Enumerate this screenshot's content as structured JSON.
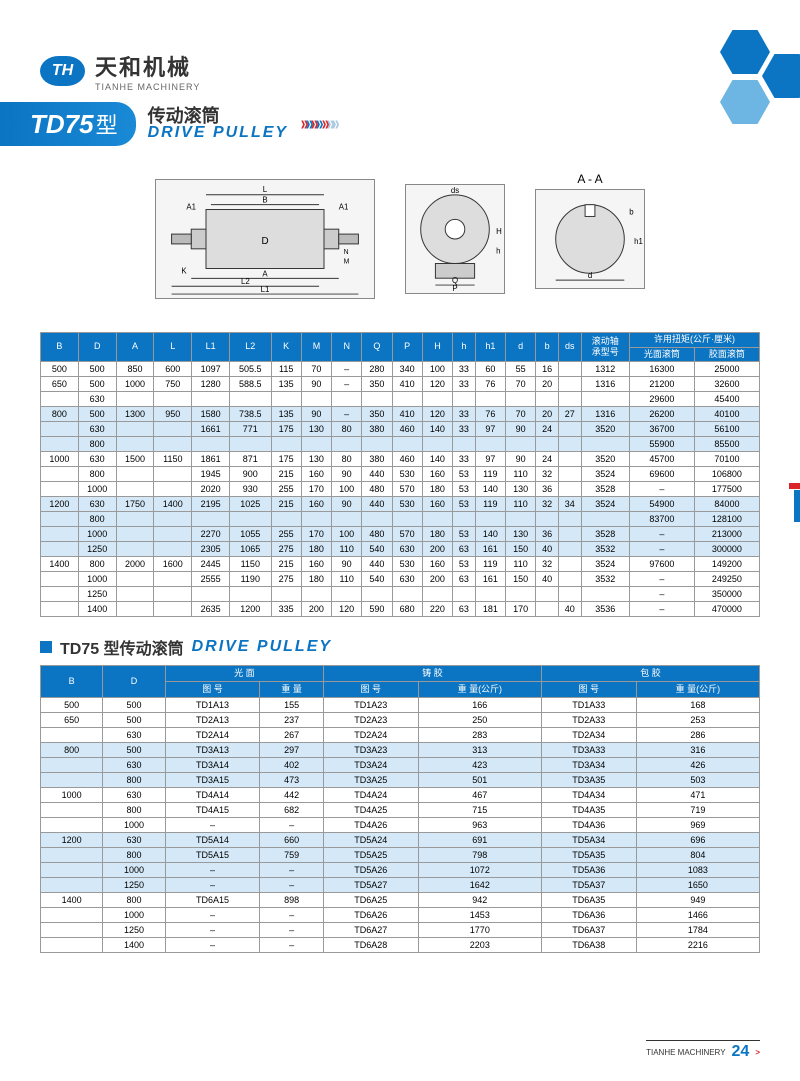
{
  "logo": {
    "badge": "TH",
    "cn": "天和机械",
    "en": "TIANHE MACHINERY"
  },
  "title": {
    "code": "TD75",
    "xing": "型",
    "cn": "传动滚筒",
    "en": "DRIVE PULLEY"
  },
  "diagram_aa_label": "A - A",
  "section2": {
    "cn": "TD75 型传动滚筒",
    "en": "DRIVE PULLEY"
  },
  "chevron_colors": [
    "#d9252a",
    "#0b74c3",
    "#d9252a",
    "#0b74c3",
    "#d9252a",
    "#a8c8e0",
    "#a8c8e0"
  ],
  "table1_headers": [
    "B",
    "D",
    "A",
    "L",
    "L1",
    "L2",
    "K",
    "M",
    "N",
    "Q",
    "P",
    "H",
    "h",
    "h1",
    "d",
    "b",
    "ds",
    "滚动轴\n承型号",
    "许用扭矩(公斤·厘米)"
  ],
  "table1_subheaders": [
    "光面滚筒",
    "胶面滚筒"
  ],
  "table1_rows": [
    {
      "B": "500",
      "D": "500",
      "A": "850",
      "L": "600",
      "L1": "1097",
      "L2": "505.5",
      "K": "115",
      "M": "70",
      "N": "–",
      "Q": "280",
      "P": "340",
      "H": "100",
      "h": "33",
      "h1": "60",
      "d": "55",
      "b": "16",
      "ds": "",
      "bearing": "1312",
      "t1": "16300",
      "t2": "25000"
    },
    {
      "B": "650",
      "D": "500",
      "A": "1000",
      "L": "750",
      "L1": "1280",
      "L2": "588.5",
      "K": "135",
      "M": "90",
      "N": "–",
      "Q": "350",
      "P": "410",
      "H": "120",
      "h": "33",
      "h1": "76",
      "d": "70",
      "b": "20",
      "ds": "",
      "bearing": "1316",
      "t1": "21200",
      "t2": "32600"
    },
    {
      "B": "",
      "D": "630",
      "A": "",
      "L": "",
      "L1": "",
      "L2": "",
      "K": "",
      "M": "",
      "N": "",
      "Q": "",
      "P": "",
      "H": "",
      "h": "",
      "h1": "",
      "d": "",
      "b": "",
      "ds": "",
      "bearing": "",
      "t1": "29600",
      "t2": "45400"
    },
    {
      "B": "800",
      "D": "500",
      "A": "1300",
      "L": "950",
      "L1": "1580",
      "L2": "738.5",
      "K": "135",
      "M": "90",
      "N": "–",
      "Q": "350",
      "P": "410",
      "H": "120",
      "h": "33",
      "h1": "76",
      "d": "70",
      "b": "20",
      "ds": "27",
      "bearing": "1316",
      "t1": "26200",
      "t2": "40100",
      "zebra": true
    },
    {
      "B": "",
      "D": "630",
      "A": "",
      "L": "",
      "L1": "1661",
      "L2": "771",
      "K": "175",
      "M": "130",
      "N": "80",
      "Q": "380",
      "P": "460",
      "H": "140",
      "h": "33",
      "h1": "97",
      "d": "90",
      "b": "24",
      "ds": "",
      "bearing": "3520",
      "t1": "36700",
      "t2": "56100",
      "zebra": true
    },
    {
      "B": "",
      "D": "800",
      "A": "",
      "L": "",
      "L1": "",
      "L2": "",
      "K": "",
      "M": "",
      "N": "",
      "Q": "",
      "P": "",
      "H": "",
      "h": "",
      "h1": "",
      "d": "",
      "b": "",
      "ds": "",
      "bearing": "",
      "t1": "55900",
      "t2": "85500",
      "zebra": true
    },
    {
      "B": "1000",
      "D": "630",
      "A": "1500",
      "L": "1150",
      "L1": "1861",
      "L2": "871",
      "K": "175",
      "M": "130",
      "N": "80",
      "Q": "380",
      "P": "460",
      "H": "140",
      "h": "33",
      "h1": "97",
      "d": "90",
      "b": "24",
      "ds": "",
      "bearing": "3520",
      "t1": "45700",
      "t2": "70100"
    },
    {
      "B": "",
      "D": "800",
      "A": "",
      "L": "",
      "L1": "1945",
      "L2": "900",
      "K": "215",
      "M": "160",
      "N": "90",
      "Q": "440",
      "P": "530",
      "H": "160",
      "h": "53",
      "h1": "119",
      "d": "110",
      "b": "32",
      "ds": "",
      "bearing": "3524",
      "t1": "69600",
      "t2": "106800"
    },
    {
      "B": "",
      "D": "1000",
      "A": "",
      "L": "",
      "L1": "2020",
      "L2": "930",
      "K": "255",
      "M": "170",
      "N": "100",
      "Q": "480",
      "P": "570",
      "H": "180",
      "h": "53",
      "h1": "140",
      "d": "130",
      "b": "36",
      "ds": "",
      "bearing": "3528",
      "t1": "–",
      "t2": "177500"
    },
    {
      "B": "1200",
      "D": "630",
      "A": "1750",
      "L": "1400",
      "L1": "2195",
      "L2": "1025",
      "K": "215",
      "M": "160",
      "N": "90",
      "Q": "440",
      "P": "530",
      "H": "160",
      "h": "53",
      "h1": "119",
      "d": "110",
      "b": "32",
      "ds": "34",
      "bearing": "3524",
      "t1": "54900",
      "t2": "84000",
      "zebra": true
    },
    {
      "B": "",
      "D": "800",
      "A": "",
      "L": "",
      "L1": "",
      "L2": "",
      "K": "",
      "M": "",
      "N": "",
      "Q": "",
      "P": "",
      "H": "",
      "h": "",
      "h1": "",
      "d": "",
      "b": "",
      "ds": "",
      "bearing": "",
      "t1": "83700",
      "t2": "128100",
      "zebra": true
    },
    {
      "B": "",
      "D": "1000",
      "A": "",
      "L": "",
      "L1": "2270",
      "L2": "1055",
      "K": "255",
      "M": "170",
      "N": "100",
      "Q": "480",
      "P": "570",
      "H": "180",
      "h": "53",
      "h1": "140",
      "d": "130",
      "b": "36",
      "ds": "",
      "bearing": "3528",
      "t1": "–",
      "t2": "213000",
      "zebra": true
    },
    {
      "B": "",
      "D": "1250",
      "A": "",
      "L": "",
      "L1": "2305",
      "L2": "1065",
      "K": "275",
      "M": "180",
      "N": "110",
      "Q": "540",
      "P": "630",
      "H": "200",
      "h": "63",
      "h1": "161",
      "d": "150",
      "b": "40",
      "ds": "",
      "bearing": "3532",
      "t1": "–",
      "t2": "300000",
      "zebra": true
    },
    {
      "B": "1400",
      "D": "800",
      "A": "2000",
      "L": "1600",
      "L1": "2445",
      "L2": "1150",
      "K": "215",
      "M": "160",
      "N": "90",
      "Q": "440",
      "P": "530",
      "H": "160",
      "h": "53",
      "h1": "119",
      "d": "110",
      "b": "32",
      "ds": "",
      "bearing": "3524",
      "t1": "97600",
      "t2": "149200"
    },
    {
      "B": "",
      "D": "1000",
      "A": "",
      "L": "",
      "L1": "2555",
      "L2": "1190",
      "K": "275",
      "M": "180",
      "N": "110",
      "Q": "540",
      "P": "630",
      "H": "200",
      "h": "63",
      "h1": "161",
      "d": "150",
      "b": "40",
      "ds": "",
      "bearing": "3532",
      "t1": "–",
      "t2": "249250"
    },
    {
      "B": "",
      "D": "1250",
      "A": "",
      "L": "",
      "L1": "",
      "L2": "",
      "K": "",
      "M": "",
      "N": "",
      "Q": "",
      "P": "",
      "H": "",
      "h": "",
      "h1": "",
      "d": "",
      "b": "",
      "ds": "",
      "bearing": "",
      "t1": "–",
      "t2": "350000"
    },
    {
      "B": "",
      "D": "1400",
      "A": "",
      "L": "",
      "L1": "2635",
      "L2": "1200",
      "K": "335",
      "M": "200",
      "N": "120",
      "Q": "590",
      "P": "680",
      "H": "220",
      "h": "63",
      "h1": "181",
      "d": "170",
      "b": "",
      "ds": "40",
      "bearing": "3536",
      "t1": "–",
      "t2": "470000"
    }
  ],
  "table2_headers_top": [
    "B",
    "D",
    "光 面",
    "铸 胶",
    "包 胶"
  ],
  "table2_headers_sub": [
    "图 号",
    "重 量",
    "图 号",
    "重 量(公斤)",
    "图 号",
    "重 量(公斤)"
  ],
  "table2_rows": [
    {
      "B": "500",
      "D": "500",
      "g1": "TD1A13",
      "w1": "155",
      "g2": "TD1A23",
      "w2": "166",
      "g3": "TD1A33",
      "w3": "168"
    },
    {
      "B": "650",
      "D": "500",
      "g1": "TD2A13",
      "w1": "237",
      "g2": "TD2A23",
      "w2": "250",
      "g3": "TD2A33",
      "w3": "253"
    },
    {
      "B": "",
      "D": "630",
      "g1": "TD2A14",
      "w1": "267",
      "g2": "TD2A24",
      "w2": "283",
      "g3": "TD2A34",
      "w3": "286"
    },
    {
      "B": "800",
      "D": "500",
      "g1": "TD3A13",
      "w1": "297",
      "g2": "TD3A23",
      "w2": "313",
      "g3": "TD3A33",
      "w3": "316",
      "zebra": true
    },
    {
      "B": "",
      "D": "630",
      "g1": "TD3A14",
      "w1": "402",
      "g2": "TD3A24",
      "w2": "423",
      "g3": "TD3A34",
      "w3": "426",
      "zebra": true
    },
    {
      "B": "",
      "D": "800",
      "g1": "TD3A15",
      "w1": "473",
      "g2": "TD3A25",
      "w2": "501",
      "g3": "TD3A35",
      "w3": "503",
      "zebra": true
    },
    {
      "B": "1000",
      "D": "630",
      "g1": "TD4A14",
      "w1": "442",
      "g2": "TD4A24",
      "w2": "467",
      "g3": "TD4A34",
      "w3": "471"
    },
    {
      "B": "",
      "D": "800",
      "g1": "TD4A15",
      "w1": "682",
      "g2": "TD4A25",
      "w2": "715",
      "g3": "TD4A35",
      "w3": "719"
    },
    {
      "B": "",
      "D": "1000",
      "g1": "–",
      "w1": "–",
      "g2": "TD4A26",
      "w2": "963",
      "g3": "TD4A36",
      "w3": "969"
    },
    {
      "B": "1200",
      "D": "630",
      "g1": "TD5A14",
      "w1": "660",
      "g2": "TD5A24",
      "w2": "691",
      "g3": "TD5A34",
      "w3": "696",
      "zebra": true
    },
    {
      "B": "",
      "D": "800",
      "g1": "TD5A15",
      "w1": "759",
      "g2": "TD5A25",
      "w2": "798",
      "g3": "TD5A35",
      "w3": "804",
      "zebra": true
    },
    {
      "B": "",
      "D": "1000",
      "g1": "–",
      "w1": "–",
      "g2": "TD5A26",
      "w2": "1072",
      "g3": "TD5A36",
      "w3": "1083",
      "zebra": true
    },
    {
      "B": "",
      "D": "1250",
      "g1": "–",
      "w1": "–",
      "g2": "TD5A27",
      "w2": "1642",
      "g3": "TD5A37",
      "w3": "1650",
      "zebra": true
    },
    {
      "B": "1400",
      "D": "800",
      "g1": "TD6A15",
      "w1": "898",
      "g2": "TD6A25",
      "w2": "942",
      "g3": "TD6A35",
      "w3": "949"
    },
    {
      "B": "",
      "D": "1000",
      "g1": "–",
      "w1": "–",
      "g2": "TD6A26",
      "w2": "1453",
      "g3": "TD6A36",
      "w3": "1466"
    },
    {
      "B": "",
      "D": "1250",
      "g1": "–",
      "w1": "–",
      "g2": "TD6A27",
      "w2": "1770",
      "g3": "TD6A37",
      "w3": "1784"
    },
    {
      "B": "",
      "D": "1400",
      "g1": "–",
      "w1": "–",
      "g2": "TD6A28",
      "w2": "2203",
      "g3": "TD6A38",
      "w3": "2216"
    }
  ],
  "footer": {
    "company": "TIANHE MACHINERY",
    "page": "24"
  }
}
